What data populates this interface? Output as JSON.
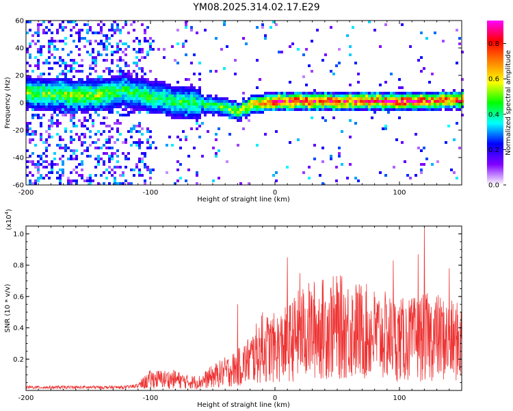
{
  "chart_data": [
    {
      "type": "heatmap",
      "title": "YM08.2025.314.02.17.E29",
      "xlabel": "Height of straight line (km)",
      "ylabel": "Frequency (Hz)",
      "xlim": [
        -200,
        150
      ],
      "ylim": [
        -60,
        60
      ],
      "xticks": [
        -200,
        -100,
        0,
        100
      ],
      "yticks": [
        60,
        40,
        20,
        0,
        -20,
        -40,
        -60
      ],
      "colorbar": {
        "label": "Normalized spectral amplitude",
        "range": [
          0.0,
          0.93
        ],
        "ticks": [
          0.0,
          0.2,
          0.4,
          0.6,
          0.8
        ],
        "tick_labels": [
          "0.0",
          "0.2",
          "0.4",
          "0.6",
          "0.8"
        ],
        "colors": [
          "#ffffff",
          "#8000ff",
          "#0000ff",
          "#00ffff",
          "#00ff00",
          "#ffff00",
          "#ff8000",
          "#ff0000",
          "#ff00ff"
        ]
      },
      "ridge": {
        "x": [
          -200,
          -150,
          -120,
          -100,
          -80,
          -60,
          -40,
          -30,
          -20,
          0,
          50,
          100,
          150
        ],
        "y": [
          8,
          6,
          10,
          5,
          2,
          0,
          -3,
          -5,
          0,
          2,
          2,
          2,
          3
        ],
        "amplitude": [
          0.35,
          0.4,
          0.3,
          0.3,
          0.3,
          0.3,
          0.35,
          0.45,
          0.55,
          0.7,
          0.65,
          0.7,
          0.6
        ]
      }
    },
    {
      "type": "line",
      "title": "",
      "xlabel": "Height of straight line (km)",
      "ylabel": "SNR (10 * v/v)",
      "scale_label": "(x10",
      "scale_exp": "4",
      "scale_close": ")",
      "xlim": [
        -200,
        150
      ],
      "ylim": [
        0,
        1.05
      ],
      "xticks": [
        -200,
        -100,
        0,
        100
      ],
      "yticks": [
        0.2,
        0.4,
        0.6,
        0.8,
        1.0
      ],
      "ytick_labels": [
        "0.2",
        "0.4",
        "0.6",
        "0.8",
        "1.0"
      ],
      "series": [
        {
          "name": "SNR",
          "color": "#ee3333",
          "x": [
            -200,
            -150,
            -120,
            -110,
            -100,
            -90,
            -80,
            -70,
            -60,
            -50,
            -40,
            -30,
            -20,
            -10,
            0,
            10,
            20,
            30,
            50,
            70,
            90,
            100,
            110,
            120,
            130,
            140,
            150
          ],
          "y": [
            0.02,
            0.02,
            0.02,
            0.03,
            0.08,
            0.08,
            0.08,
            0.06,
            0.06,
            0.1,
            0.13,
            0.16,
            0.22,
            0.3,
            0.3,
            0.33,
            0.4,
            0.43,
            0.45,
            0.42,
            0.38,
            0.36,
            0.36,
            0.38,
            0.38,
            0.35,
            0.34
          ],
          "peaks": [
            [
              -30,
              0.55
            ],
            [
              -10,
              0.5
            ],
            [
              10,
              0.85
            ],
            [
              20,
              0.75
            ],
            [
              95,
              0.83
            ],
            [
              115,
              0.87
            ],
            [
              120,
              1.05
            ],
            [
              140,
              0.78
            ]
          ]
        }
      ]
    }
  ]
}
